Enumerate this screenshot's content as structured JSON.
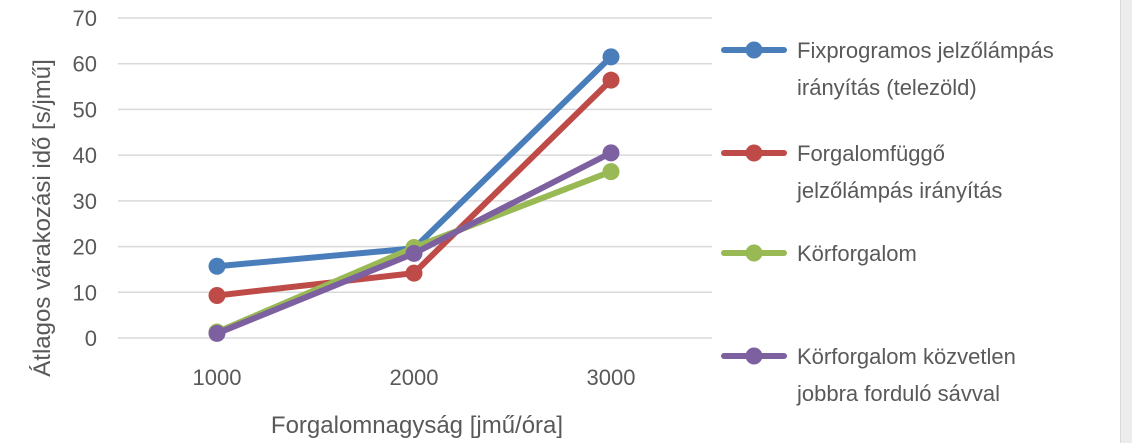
{
  "chart_data": {
    "type": "line",
    "title": "",
    "xlabel": "Forgalomnagyság [jmű/óra]",
    "ylabel": "Átlagos várakozási idő [s/jmű]",
    "categories": [
      1000,
      2000,
      3000
    ],
    "x_tick_labels": [
      "1000",
      "2000",
      "3000"
    ],
    "ylim": [
      0,
      70
    ],
    "y_ticks": [
      0,
      10,
      20,
      30,
      40,
      50,
      60,
      70
    ],
    "y_tick_labels": [
      "0",
      "10",
      "20",
      "30",
      "40",
      "50",
      "60",
      "70"
    ],
    "grid": true,
    "legend_position": "right",
    "series": [
      {
        "name": "Fixprogramos jelzőlámpás irányítás (telezöld)",
        "legend_lines": [
          "Fixprogramos jelzőlámpás",
          "irányítás (telezöld)"
        ],
        "color": "#4a7ebb",
        "values": [
          15.7,
          19.6,
          61.5
        ]
      },
      {
        "name": "Forgalomfüggő jelzőlámpás irányítás",
        "legend_lines": [
          "Forgalomfüggő",
          "jelzőlámpás irányítás"
        ],
        "color": "#be4b48",
        "values": [
          9.3,
          14.2,
          56.4
        ]
      },
      {
        "name": "Körforgalom",
        "legend_lines": [
          "Körforgalom"
        ],
        "color": "#98b954",
        "values": [
          1.3,
          19.8,
          36.4
        ]
      },
      {
        "name": "Körforgalom közvetlen jobbra forduló sávval",
        "legend_lines": [
          "Körforgalom közvetlen",
          "jobbra forduló sávval"
        ],
        "color": "#7d60a0",
        "values": [
          1.0,
          18.5,
          40.5
        ]
      }
    ]
  }
}
